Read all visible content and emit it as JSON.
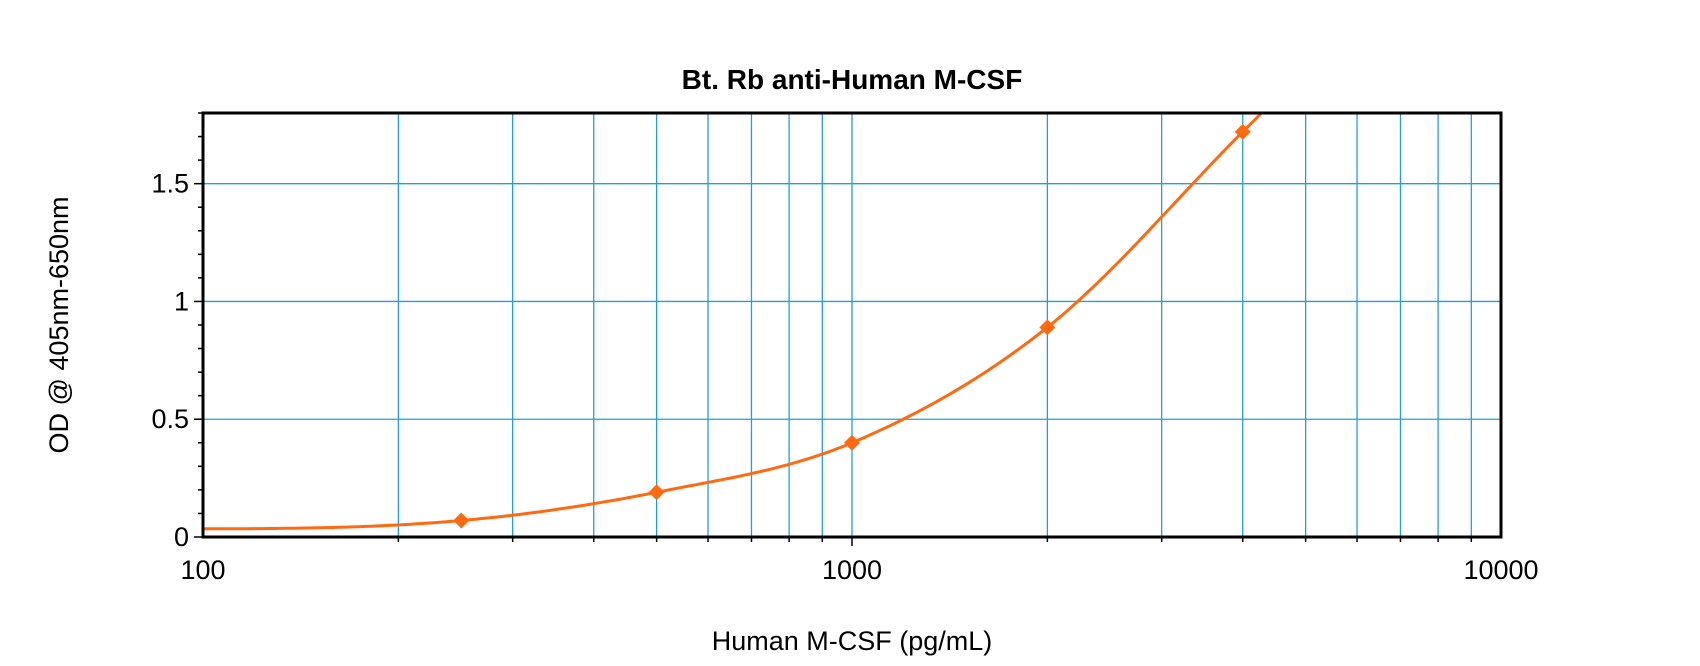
{
  "chart_data": {
    "type": "scatter",
    "title": "Bt. Rb anti-Human M-CSF",
    "xlabel": "Human M-CSF (pg/mL)",
    "ylabel": "OD @ 405nm-650nm",
    "x_scale": "log",
    "xlim": [
      100,
      10000
    ],
    "ylim": [
      0,
      1.8
    ],
    "x_ticks": [
      100,
      1000,
      10000
    ],
    "x_tick_labels": [
      "100",
      "1000",
      "10000"
    ],
    "y_ticks": [
      0,
      0.5,
      1,
      1.5
    ],
    "y_tick_labels": [
      "0",
      "0.5",
      "1",
      "1.5"
    ],
    "grid": true,
    "series": [
      {
        "x": [
          250,
          500,
          1000,
          2000,
          4000
        ],
        "y": [
          0.07,
          0.19,
          0.4,
          0.89,
          1.72
        ],
        "marker": "diamond",
        "color": "#ff6a10",
        "fit_curve": true
      }
    ],
    "colors": {
      "grid": "#1ea0e0",
      "series": "#ff6a10",
      "frame": "#000000"
    }
  }
}
